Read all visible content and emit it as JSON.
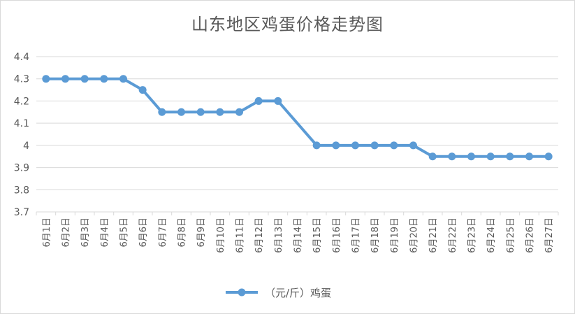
{
  "chart_data": {
    "type": "line",
    "title": "山东地区鸡蛋价格走势图",
    "xlabel": "",
    "ylabel": "",
    "ylim": [
      3.7,
      4.4
    ],
    "yticks": [
      "3.7",
      "3.8",
      "3.9",
      "4",
      "4.1",
      "4.2",
      "4.3",
      "4.4"
    ],
    "grid": true,
    "legend_position": "bottom",
    "categories": [
      "6月1日",
      "6月2日",
      "6月3日",
      "6月4日",
      "6月5日",
      "6月6日",
      "6月7日",
      "6月8日",
      "6月9日",
      "6月10日",
      "6月11日",
      "6月12日",
      "6月13日",
      "6月14日",
      "6月15日",
      "6月16日",
      "6月17日",
      "6月18日",
      "6月19日",
      "6月20日",
      "6月21日",
      "6月22日",
      "6月23日",
      "6月24日",
      "6月25日",
      "6月26日",
      "6月27日"
    ],
    "series": [
      {
        "name": "（元/斤）鸡蛋",
        "color": "#5b9bd5",
        "values": [
          4.3,
          4.3,
          4.3,
          4.3,
          4.3,
          4.25,
          4.15,
          4.15,
          4.15,
          4.15,
          4.15,
          4.2,
          4.2,
          null,
          4.0,
          4.0,
          4.0,
          4.0,
          4.0,
          4.0,
          3.95,
          3.95,
          3.95,
          3.95,
          3.95,
          3.95,
          3.95
        ]
      }
    ]
  }
}
